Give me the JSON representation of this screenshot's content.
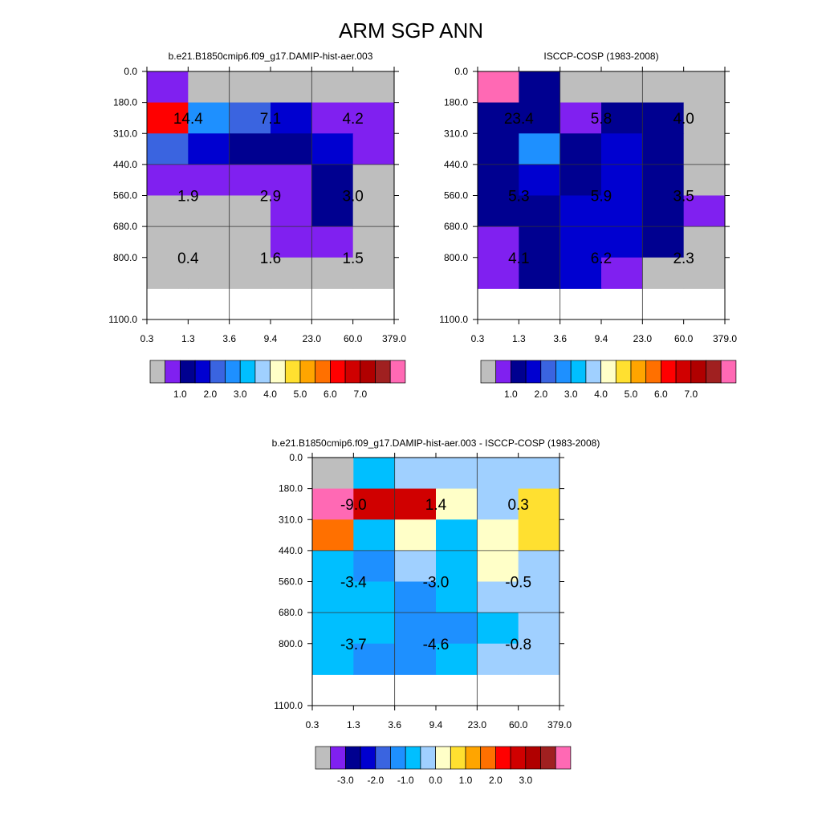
{
  "page_title": "ARM SGP ANN",
  "chart_data": [
    {
      "id": "model",
      "type": "heatmap",
      "title": "b.e21.B1850cmip6.f09_g17.DAMIP-hist-aer.003",
      "xlabel": "",
      "ylabel": "",
      "x_ticks": [
        "0.3",
        "1.3",
        "3.6",
        "9.4",
        "23.0",
        "60.0",
        "379.0"
      ],
      "y_ticks": [
        "0.0",
        "180.0",
        "310.0",
        "440.0",
        "560.0",
        "680.0",
        "800.0",
        "1100.0"
      ],
      "grid_color_index": [
        [
          1,
          0,
          0,
          0,
          0,
          0
        ],
        [
          12,
          5,
          4,
          3,
          1,
          1
        ],
        [
          4,
          3,
          2,
          2,
          3,
          1
        ],
        [
          1,
          1,
          1,
          1,
          2,
          0
        ],
        [
          0,
          0,
          0,
          1,
          2,
          0
        ],
        [
          0,
          0,
          0,
          1,
          1,
          0
        ],
        [
          0,
          0,
          0,
          0,
          0,
          0
        ]
      ],
      "group_labels": [
        {
          "row": 0,
          "col": 0,
          "value": "14.4"
        },
        {
          "row": 0,
          "col": 1,
          "value": "7.1"
        },
        {
          "row": 0,
          "col": 2,
          "value": "4.2"
        },
        {
          "row": 1,
          "col": 0,
          "value": "1.9"
        },
        {
          "row": 1,
          "col": 1,
          "value": "2.9"
        },
        {
          "row": 1,
          "col": 2,
          "value": "3.0"
        },
        {
          "row": 2,
          "col": 0,
          "value": "0.4"
        },
        {
          "row": 2,
          "col": 1,
          "value": "1.6"
        },
        {
          "row": 2,
          "col": 2,
          "value": "1.5"
        }
      ],
      "colorbar": {
        "palette": "abs",
        "labels": [
          {
            "value": "1.0",
            "at": 2
          },
          {
            "value": "2.0",
            "at": 4
          },
          {
            "value": "3.0",
            "at": 6
          },
          {
            "value": "4.0",
            "at": 8
          },
          {
            "value": "5.0",
            "at": 10
          },
          {
            "value": "6.0",
            "at": 12
          },
          {
            "value": "7.0",
            "at": 14
          }
        ]
      }
    },
    {
      "id": "obs",
      "type": "heatmap",
      "title": "ISCCP-COSP (1983-2008)",
      "xlabel": "",
      "ylabel": "",
      "x_ticks": [
        "0.3",
        "1.3",
        "3.6",
        "9.4",
        "23.0",
        "60.0",
        "379.0"
      ],
      "y_ticks": [
        "0.0",
        "180.0",
        "310.0",
        "440.0",
        "560.0",
        "680.0",
        "800.0",
        "1100.0"
      ],
      "grid_color_index": [
        [
          16,
          2,
          0,
          0,
          0,
          0
        ],
        [
          2,
          2,
          1,
          2,
          2,
          0
        ],
        [
          2,
          5,
          2,
          3,
          2,
          0
        ],
        [
          2,
          3,
          2,
          3,
          2,
          0
        ],
        [
          2,
          2,
          3,
          3,
          2,
          1
        ],
        [
          1,
          2,
          3,
          3,
          2,
          0
        ],
        [
          1,
          2,
          3,
          1,
          0,
          0
        ]
      ],
      "group_labels": [
        {
          "row": 0,
          "col": 0,
          "value": "23.4"
        },
        {
          "row": 0,
          "col": 1,
          "value": "5.8"
        },
        {
          "row": 0,
          "col": 2,
          "value": "4.0"
        },
        {
          "row": 1,
          "col": 0,
          "value": "5.3"
        },
        {
          "row": 1,
          "col": 1,
          "value": "5.9"
        },
        {
          "row": 1,
          "col": 2,
          "value": "3.5"
        },
        {
          "row": 2,
          "col": 0,
          "value": "4.1"
        },
        {
          "row": 2,
          "col": 1,
          "value": "6.2"
        },
        {
          "row": 2,
          "col": 2,
          "value": "2.3"
        }
      ],
      "colorbar": {
        "palette": "abs",
        "labels": [
          {
            "value": "1.0",
            "at": 2
          },
          {
            "value": "2.0",
            "at": 4
          },
          {
            "value": "3.0",
            "at": 6
          },
          {
            "value": "4.0",
            "at": 8
          },
          {
            "value": "5.0",
            "at": 10
          },
          {
            "value": "6.0",
            "at": 12
          },
          {
            "value": "7.0",
            "at": 14
          }
        ]
      }
    },
    {
      "id": "diff",
      "type": "heatmap",
      "title": "b.e21.B1850cmip6.f09_g17.DAMIP-hist-aer.003 - ISCCP-COSP (1983-2008)",
      "xlabel": "",
      "ylabel": "",
      "x_ticks": [
        "0.3",
        "1.3",
        "3.6",
        "9.4",
        "23.0",
        "60.0",
        "379.0"
      ],
      "y_ticks": [
        "0.0",
        "180.0",
        "310.0",
        "440.0",
        "560.0",
        "680.0",
        "800.0",
        "1100.0"
      ],
      "grid_color_index": [
        [
          0,
          6,
          7,
          7,
          7,
          7
        ],
        [
          16,
          13,
          13,
          8,
          7,
          9
        ],
        [
          11,
          6,
          8,
          6,
          8,
          9
        ],
        [
          6,
          5,
          7,
          6,
          8,
          7
        ],
        [
          6,
          6,
          5,
          6,
          7,
          7
        ],
        [
          6,
          6,
          5,
          5,
          6,
          7
        ],
        [
          6,
          5,
          5,
          6,
          7,
          7
        ]
      ],
      "group_labels": [
        {
          "row": 0,
          "col": 0,
          "value": "-9.0"
        },
        {
          "row": 0,
          "col": 1,
          "value": "1.4"
        },
        {
          "row": 0,
          "col": 2,
          "value": "0.3"
        },
        {
          "row": 1,
          "col": 0,
          "value": "-3.4"
        },
        {
          "row": 1,
          "col": 1,
          "value": "-3.0"
        },
        {
          "row": 1,
          "col": 2,
          "value": "-0.5"
        },
        {
          "row": 2,
          "col": 0,
          "value": "-3.7"
        },
        {
          "row": 2,
          "col": 1,
          "value": "-4.6"
        },
        {
          "row": 2,
          "col": 2,
          "value": "-0.8"
        }
      ],
      "colorbar": {
        "palette": "diff",
        "labels": [
          {
            "value": "-3.0",
            "at": 2
          },
          {
            "value": "-2.0",
            "at": 4
          },
          {
            "value": "-1.0",
            "at": 6
          },
          {
            "value": "0.0",
            "at": 8
          },
          {
            "value": "1.0",
            "at": 10
          },
          {
            "value": "2.0",
            "at": 12
          },
          {
            "value": "3.0",
            "at": 14
          }
        ]
      }
    }
  ],
  "palettes": {
    "abs": [
      "#bebebe",
      "#8020f0",
      "#000090",
      "#0000d0",
      "#3a64e0",
      "#1e90ff",
      "#00bfff",
      "#a0d0ff",
      "#ffffc8",
      "#ffe030",
      "#ffa500",
      "#ff7000",
      "#ff0000",
      "#d00000",
      "#b00000",
      "#a02020",
      "#ff69b4"
    ],
    "diff": [
      "#bebebe",
      "#8020f0",
      "#000090",
      "#0000d0",
      "#3a64e0",
      "#1e90ff",
      "#00bfff",
      "#a0d0ff",
      "#ffffc8",
      "#ffe030",
      "#ffa500",
      "#ff7000",
      "#ff0000",
      "#d00000",
      "#b00000",
      "#a02020",
      "#ff69b4"
    ]
  }
}
